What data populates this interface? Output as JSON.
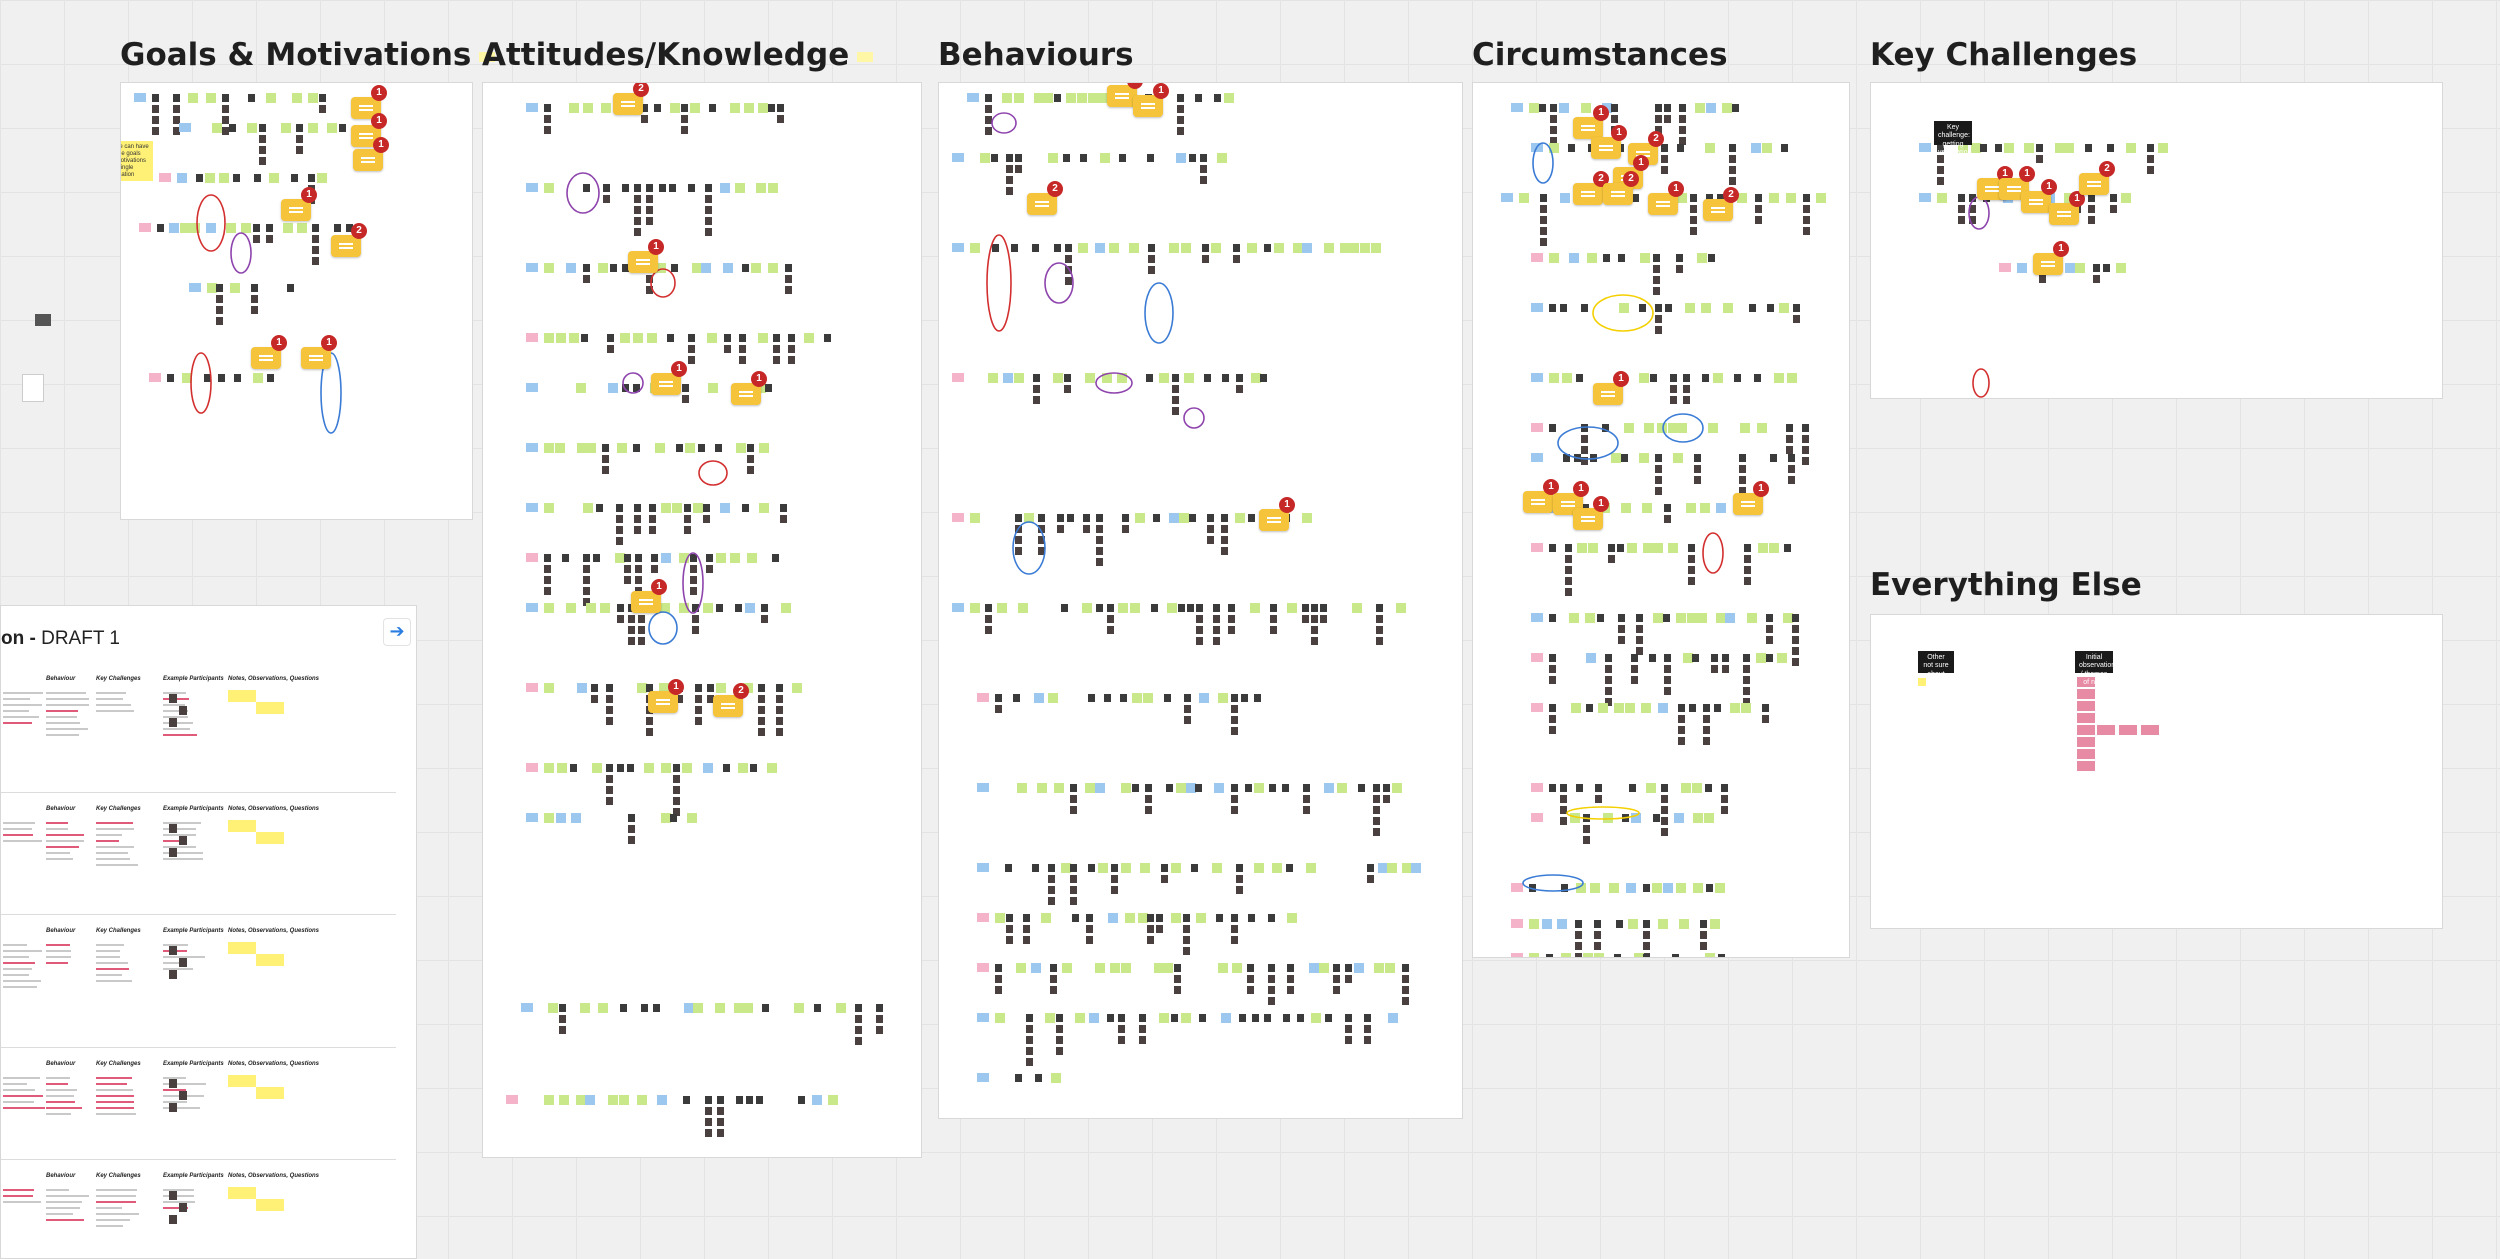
{
  "canvas": {
    "frames": [
      {
        "id": "goals",
        "title": "Goals & Motivations"
      },
      {
        "id": "attitudes",
        "title": "Attitudes/Knowledge"
      },
      {
        "id": "behaviours",
        "title": "Behaviours"
      },
      {
        "id": "circumstances",
        "title": "Circumstances"
      },
      {
        "id": "challenges",
        "title": "Key Challenges"
      },
      {
        "id": "everything",
        "title": "Everything Else"
      }
    ],
    "goals_note": "People can have multiple goals and motivations for a single certification",
    "challenges_sticky": "Key challenge: getting verification",
    "everything_stickies": [
      "Other not sure about",
      "Initial observations / themes of note"
    ],
    "comment_badges": {
      "goals": [
        "1",
        "1",
        "1",
        "1",
        "2",
        "1",
        "1"
      ],
      "attitudes": [
        "2",
        "1",
        "1",
        "1",
        "1",
        "1",
        "2"
      ],
      "behaviours": [
        "1",
        "1",
        "2",
        "1"
      ],
      "circumstances": [
        "1",
        "1",
        "2",
        "1",
        "2",
        "2",
        "1",
        "2",
        "1",
        "1",
        "1",
        "1",
        "1"
      ],
      "challenges": [
        "1",
        "1",
        "1",
        "1",
        "2",
        "1"
      ]
    }
  },
  "draft": {
    "title_prefix": "on - ",
    "title_suffix": "DRAFT 1",
    "next_icon": "arrow-right-icon",
    "sections": [
      {
        "headers": [
          "Behaviour",
          "Key Challenges",
          "Example Participants",
          "Notes, Observations, Questions"
        ]
      },
      {
        "headers": [
          "Behaviour",
          "Key Challenges",
          "Example Participants",
          "Notes, Observations, Questions"
        ]
      },
      {
        "headers": [
          "Behaviour",
          "Key Challenges",
          "Example Participants",
          "Notes, Observations, Questions"
        ]
      },
      {
        "headers": [
          "Behaviour",
          "Key Challenges",
          "Example Participants",
          "Notes, Observations, Questions"
        ]
      },
      {
        "headers": [
          "Behaviour",
          "Key Challenges",
          "Example Participants",
          "Notes, Observations, Questions"
        ]
      }
    ]
  },
  "colors": {
    "background": "#f0f0f0",
    "frame": "#ffffff",
    "sticky_yellow": "#fff176",
    "sticky_green": "#c9e88a",
    "sticky_blue": "#9cc8f0",
    "comment": "#f6c43a",
    "badge": "#c62828",
    "link_blue": "#2a7de1"
  }
}
